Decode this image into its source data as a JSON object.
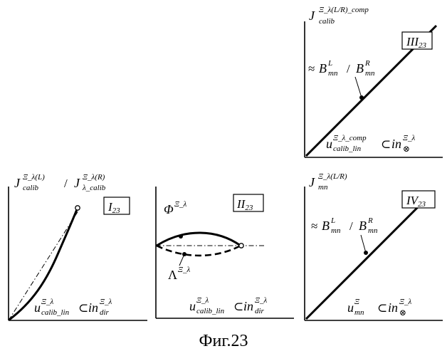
{
  "caption": "Фиг.23",
  "panels": [
    {
      "id": "I23",
      "tag": {
        "main": "I",
        "sub": "23"
      },
      "y_label": {
        "part1": {
          "base": "J",
          "sup": "Ξ_λ(L)",
          "sub": "calib"
        },
        "separator": "/",
        "part2": {
          "base": "J",
          "sup": "Ξ_λ(R)",
          "sub": "λ_calib"
        }
      },
      "x_label": {
        "base": "u",
        "sup": "Ξ_λ",
        "sub": "calib_lin",
        "rel": "⊂",
        "rhs_base": "in",
        "rhs_sup": "Ξ_λ",
        "rhs_sub": "dir"
      }
    },
    {
      "id": "II23",
      "tag": {
        "main": "II",
        "sub": "23"
      },
      "curve_upper": {
        "base": "Φ",
        "sup": "Ξ_λ"
      },
      "curve_lower": {
        "base": "Λ",
        "sup": "Ξ_λ"
      },
      "x_label": {
        "base": "u",
        "sup": "Ξ_λ",
        "sub": "calib_lin",
        "rel": "⊂",
        "rhs_base": "in",
        "rhs_sup": "Ξ_λ",
        "rhs_sub": "dir"
      }
    },
    {
      "id": "III23",
      "tag": {
        "main": "III",
        "sub": "23"
      },
      "y_label": {
        "base": "J",
        "sup": "Ξ_λ(L/R)_comp",
        "sub": "calib"
      },
      "slope_label": {
        "approx": "≈",
        "b1": "B",
        "b1_sup": "L",
        "b1_sub": "mn",
        "sep": "/",
        "b2": "B",
        "b2_sup": "R",
        "b2_sub": "mn"
      },
      "x_label": {
        "base": "u",
        "sup": "Ξ_λ_comp",
        "sub": "calib_lin",
        "rel": "⊂",
        "rhs_base": "in",
        "rhs_sup": "Ξ_λ",
        "rhs_sub": "⊗"
      }
    },
    {
      "id": "IV23",
      "tag": {
        "main": "IV",
        "sub": "23"
      },
      "y_label": {
        "base": "J",
        "sup": "Ξ_λ(L/R)",
        "sub": "mn"
      },
      "slope_label": {
        "approx": "≈",
        "b1": "B",
        "b1_sup": "L",
        "b1_sub": "mn",
        "sep": "/",
        "b2": "B",
        "b2_sup": "R",
        "b2_sub": "mn"
      },
      "x_label": {
        "base": "u",
        "sup": "Ξ",
        "sub": "mn",
        "rel": "⊂",
        "rhs_base": "in",
        "rhs_sup": "Ξ_λ",
        "rhs_sub": "⊗"
      }
    }
  ]
}
